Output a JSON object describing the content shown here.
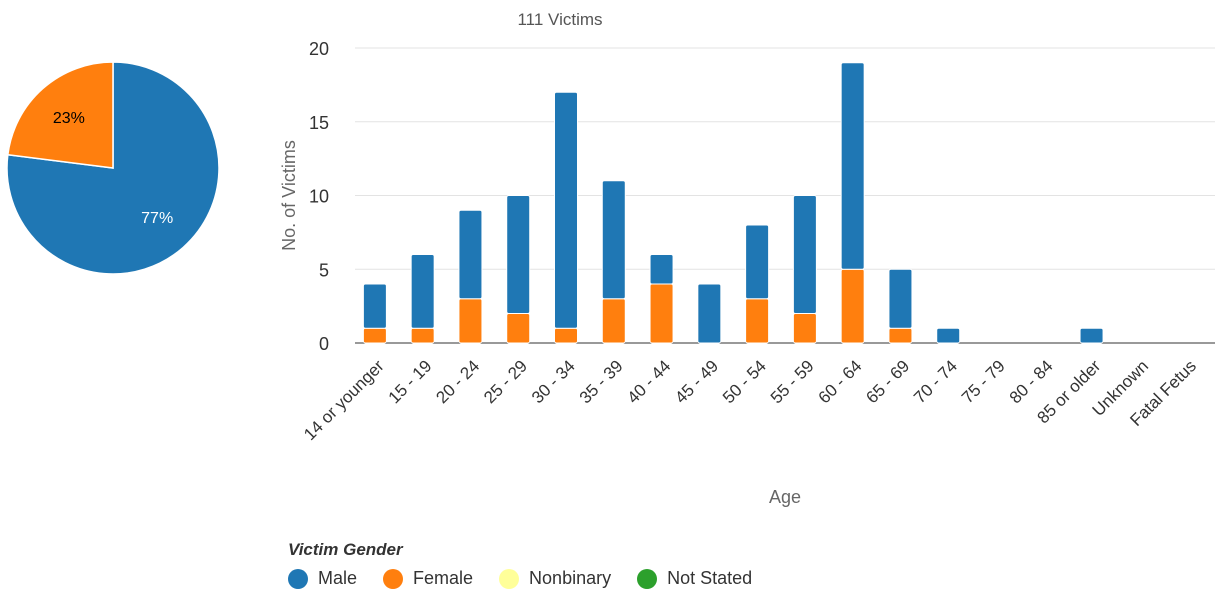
{
  "chart_data": [
    {
      "type": "pie",
      "slices": [
        {
          "name": "Male",
          "value": 77,
          "label": "77%",
          "color": "#1f77b4"
        },
        {
          "name": "Female",
          "value": 23,
          "label": "23%",
          "color": "#ff7f0e"
        }
      ]
    },
    {
      "type": "bar",
      "stacked": true,
      "title": "111 Victims",
      "xlabel": "Age",
      "ylabel": "No. of Victims",
      "ylim": [
        0,
        20
      ],
      "yticks": [
        0,
        5,
        10,
        15,
        20
      ],
      "grid": true,
      "categories": [
        "14 or younger",
        "15 - 19",
        "20 - 24",
        "25 - 29",
        "30 - 34",
        "35 - 39",
        "40 - 44",
        "45 - 49",
        "50 - 54",
        "55 - 59",
        "60 - 64",
        "65 - 69",
        "70 - 74",
        "75 - 79",
        "80 - 84",
        "85 or older",
        "Unknown",
        "Fatal Fetus"
      ],
      "series": [
        {
          "name": "Female",
          "color": "#ff7f0e",
          "values": [
            1,
            1,
            3,
            2,
            1,
            3,
            4,
            0,
            3,
            2,
            5,
            1,
            0,
            0,
            0,
            0,
            0,
            0
          ]
        },
        {
          "name": "Male",
          "color": "#1f77b4",
          "values": [
            3,
            5,
            6,
            8,
            16,
            8,
            2,
            4,
            5,
            8,
            14,
            4,
            1,
            0,
            0,
            1,
            0,
            0
          ]
        }
      ]
    }
  ],
  "legend": {
    "title": "Victim Gender",
    "items": [
      {
        "label": "Male",
        "color": "#1f77b4"
      },
      {
        "label": "Female",
        "color": "#ff7f0e"
      },
      {
        "label": "Nonbinary",
        "color": "#ffff99"
      },
      {
        "label": "Not Stated",
        "color": "#2ca02c"
      }
    ]
  }
}
